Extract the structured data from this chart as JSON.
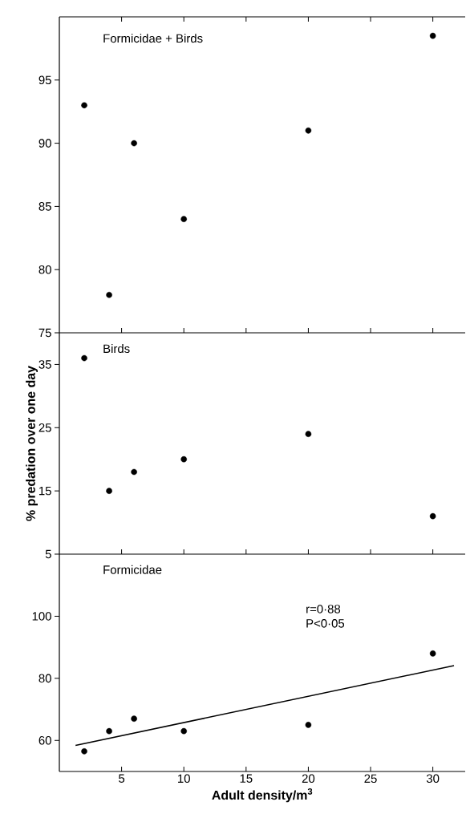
{
  "chart_data": [
    {
      "type": "scatter",
      "title": "Formicidae + Birds",
      "series": [
        {
          "marker": "circle",
          "color": "#000000",
          "x": [
            2,
            4,
            6,
            10,
            20,
            30
          ],
          "values": [
            93,
            78,
            90,
            84,
            91,
            98.5
          ]
        }
      ],
      "xlim": [
        0,
        32.6
      ],
      "xticks": [
        5,
        10,
        15,
        20,
        25,
        30
      ],
      "ylim": [
        75,
        100
      ],
      "yticks": [
        75,
        80,
        85,
        90,
        95
      ],
      "tick_labels": "y"
    },
    {
      "type": "scatter",
      "title": "Birds",
      "ylabel": "% predation over one day",
      "series": [
        {
          "marker": "circle",
          "color": "#000000",
          "x": [
            2,
            4,
            6,
            10,
            20,
            30
          ],
          "values": [
            36,
            15,
            18,
            20,
            24,
            11
          ]
        }
      ],
      "xlim": [
        0,
        32.6
      ],
      "xticks": [
        5,
        10,
        15,
        20,
        25,
        30
      ],
      "ylim": [
        5,
        40
      ],
      "yticks": [
        5,
        15,
        25,
        35
      ],
      "tick_labels": "y"
    },
    {
      "type": "scatter",
      "title": "Formicidae",
      "xlabel": "Adult density/m$^{3}$",
      "xlim": [
        0,
        32.6
      ],
      "xticks": [
        5,
        10,
        15,
        20,
        25,
        30
      ],
      "ylim": [
        50,
        120
      ],
      "yticks": [
        60,
        80,
        100
      ],
      "series": [
        {
          "marker": "circle",
          "color": "#000000",
          "x": [
            2,
            4,
            6,
            10,
            20,
            30
          ],
          "values": [
            56.5,
            63,
            67,
            63,
            65,
            88
          ]
        },
        {
          "type": "line",
          "marker": "none",
          "color": "#000000",
          "line_style": "solid",
          "x": [
            1.3,
            31.7
          ],
          "values": [
            58.4,
            84.1
          ]
        }
      ],
      "annotations": [
        "r=0·88",
        "P<0·05"
      ]
    }
  ]
}
